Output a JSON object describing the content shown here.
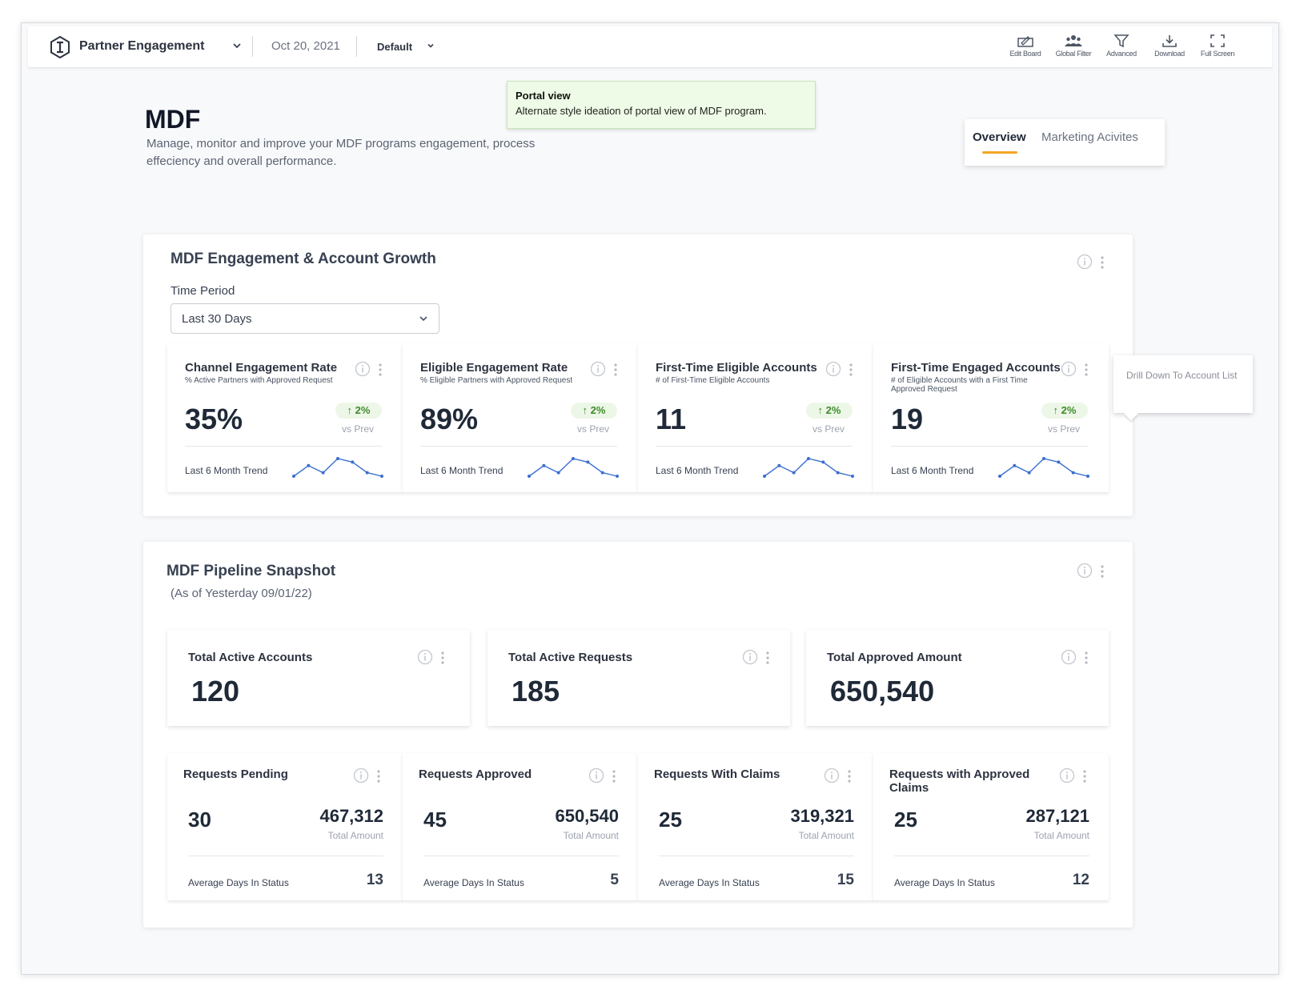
{
  "topbar": {
    "app_title": "Partner Engagement",
    "date": "Oct 20, 2021",
    "view": "Default",
    "tools": [
      {
        "label": "Edit Board",
        "icon": "edit-board-icon"
      },
      {
        "label": "Global Filter",
        "icon": "users-icon"
      },
      {
        "label": "Advanced",
        "icon": "filter-icon"
      },
      {
        "label": "Download",
        "icon": "download-icon"
      },
      {
        "label": "Full Screen",
        "icon": "fullscreen-icon"
      }
    ]
  },
  "header": {
    "title": "MDF",
    "description": "Manage, monitor and improve your MDF programs engagement, process effeciency and overall performance."
  },
  "note": {
    "title": "Portal view",
    "text": "Alternate style ideation of portal view of MDF program."
  },
  "tabs": [
    {
      "label": "Overview",
      "active": true
    },
    {
      "label": "Marketing Acivites",
      "active": false
    }
  ],
  "engagement": {
    "title": "MDF Engagement & Account Growth",
    "time_period_label": "Time Period",
    "time_period_value": "Last 30 Days",
    "cards": [
      {
        "title": "Channel Engagement Rate",
        "subtitle": "% Active Partners with Approved Request",
        "value": "35%",
        "delta": "2%",
        "vs": "vs Prev",
        "trend_label": "Last 6 Month Trend",
        "trend": [
          3,
          6,
          4,
          8,
          7,
          4,
          3
        ]
      },
      {
        "title": "Eligible Engagement Rate",
        "subtitle": "% Eligible Partners with Approved Request",
        "value": "89%",
        "delta": "2%",
        "vs": "vs Prev",
        "trend_label": "Last 6 Month Trend",
        "trend": [
          3,
          6,
          4,
          8,
          7,
          4,
          3
        ]
      },
      {
        "title": "First-Time Eligible Accounts",
        "subtitle": "# of First-Time Eligible Accounts",
        "value": "11",
        "delta": "2%",
        "vs": "vs Prev",
        "trend_label": "Last 6 Month Trend",
        "trend": [
          3,
          6,
          4,
          8,
          7,
          4,
          3
        ]
      },
      {
        "title": "First-Time Engaged Accounts",
        "subtitle": "# of Eligible Accounts with a First Time Approved Request",
        "value": "19",
        "delta": "2%",
        "vs": "vs Prev",
        "trend_label": "Last 6 Month Trend",
        "trend": [
          3,
          6,
          4,
          8,
          7,
          4,
          3
        ]
      }
    ],
    "drill_tooltip": "Drill Down To Account List"
  },
  "pipeline": {
    "title": "MDF Pipeline Snapshot",
    "subtitle": "(As of Yesterday 09/01/22)",
    "totals": [
      {
        "title": "Total Active Accounts",
        "value": "120"
      },
      {
        "title": "Total Active Requests",
        "value": "185"
      },
      {
        "title": "Total Approved Amount",
        "value": "650,540"
      }
    ],
    "requests": [
      {
        "title": "Requests Pending",
        "count": "30",
        "amount": "467,312",
        "amount_label": "Total Amount",
        "avg_label": "Average Days In Status",
        "avg_value": "13"
      },
      {
        "title": "Requests Approved",
        "count": "45",
        "amount": "650,540",
        "amount_label": "Total Amount",
        "avg_label": "Average Days In Status",
        "avg_value": "5"
      },
      {
        "title": "Requests With Claims",
        "count": "25",
        "amount": "319,321",
        "amount_label": "Total Amount",
        "avg_label": "Average Days In Status",
        "avg_value": "15"
      },
      {
        "title": "Requests with Approved Claims",
        "count": "25",
        "amount": "287,121",
        "amount_label": "Total Amount",
        "avg_label": "Average Days In Status",
        "avg_value": "12"
      }
    ]
  },
  "colors": {
    "accent": "#f5a524",
    "positive": "#3d8b2a",
    "spark": "#3b6fd1"
  }
}
